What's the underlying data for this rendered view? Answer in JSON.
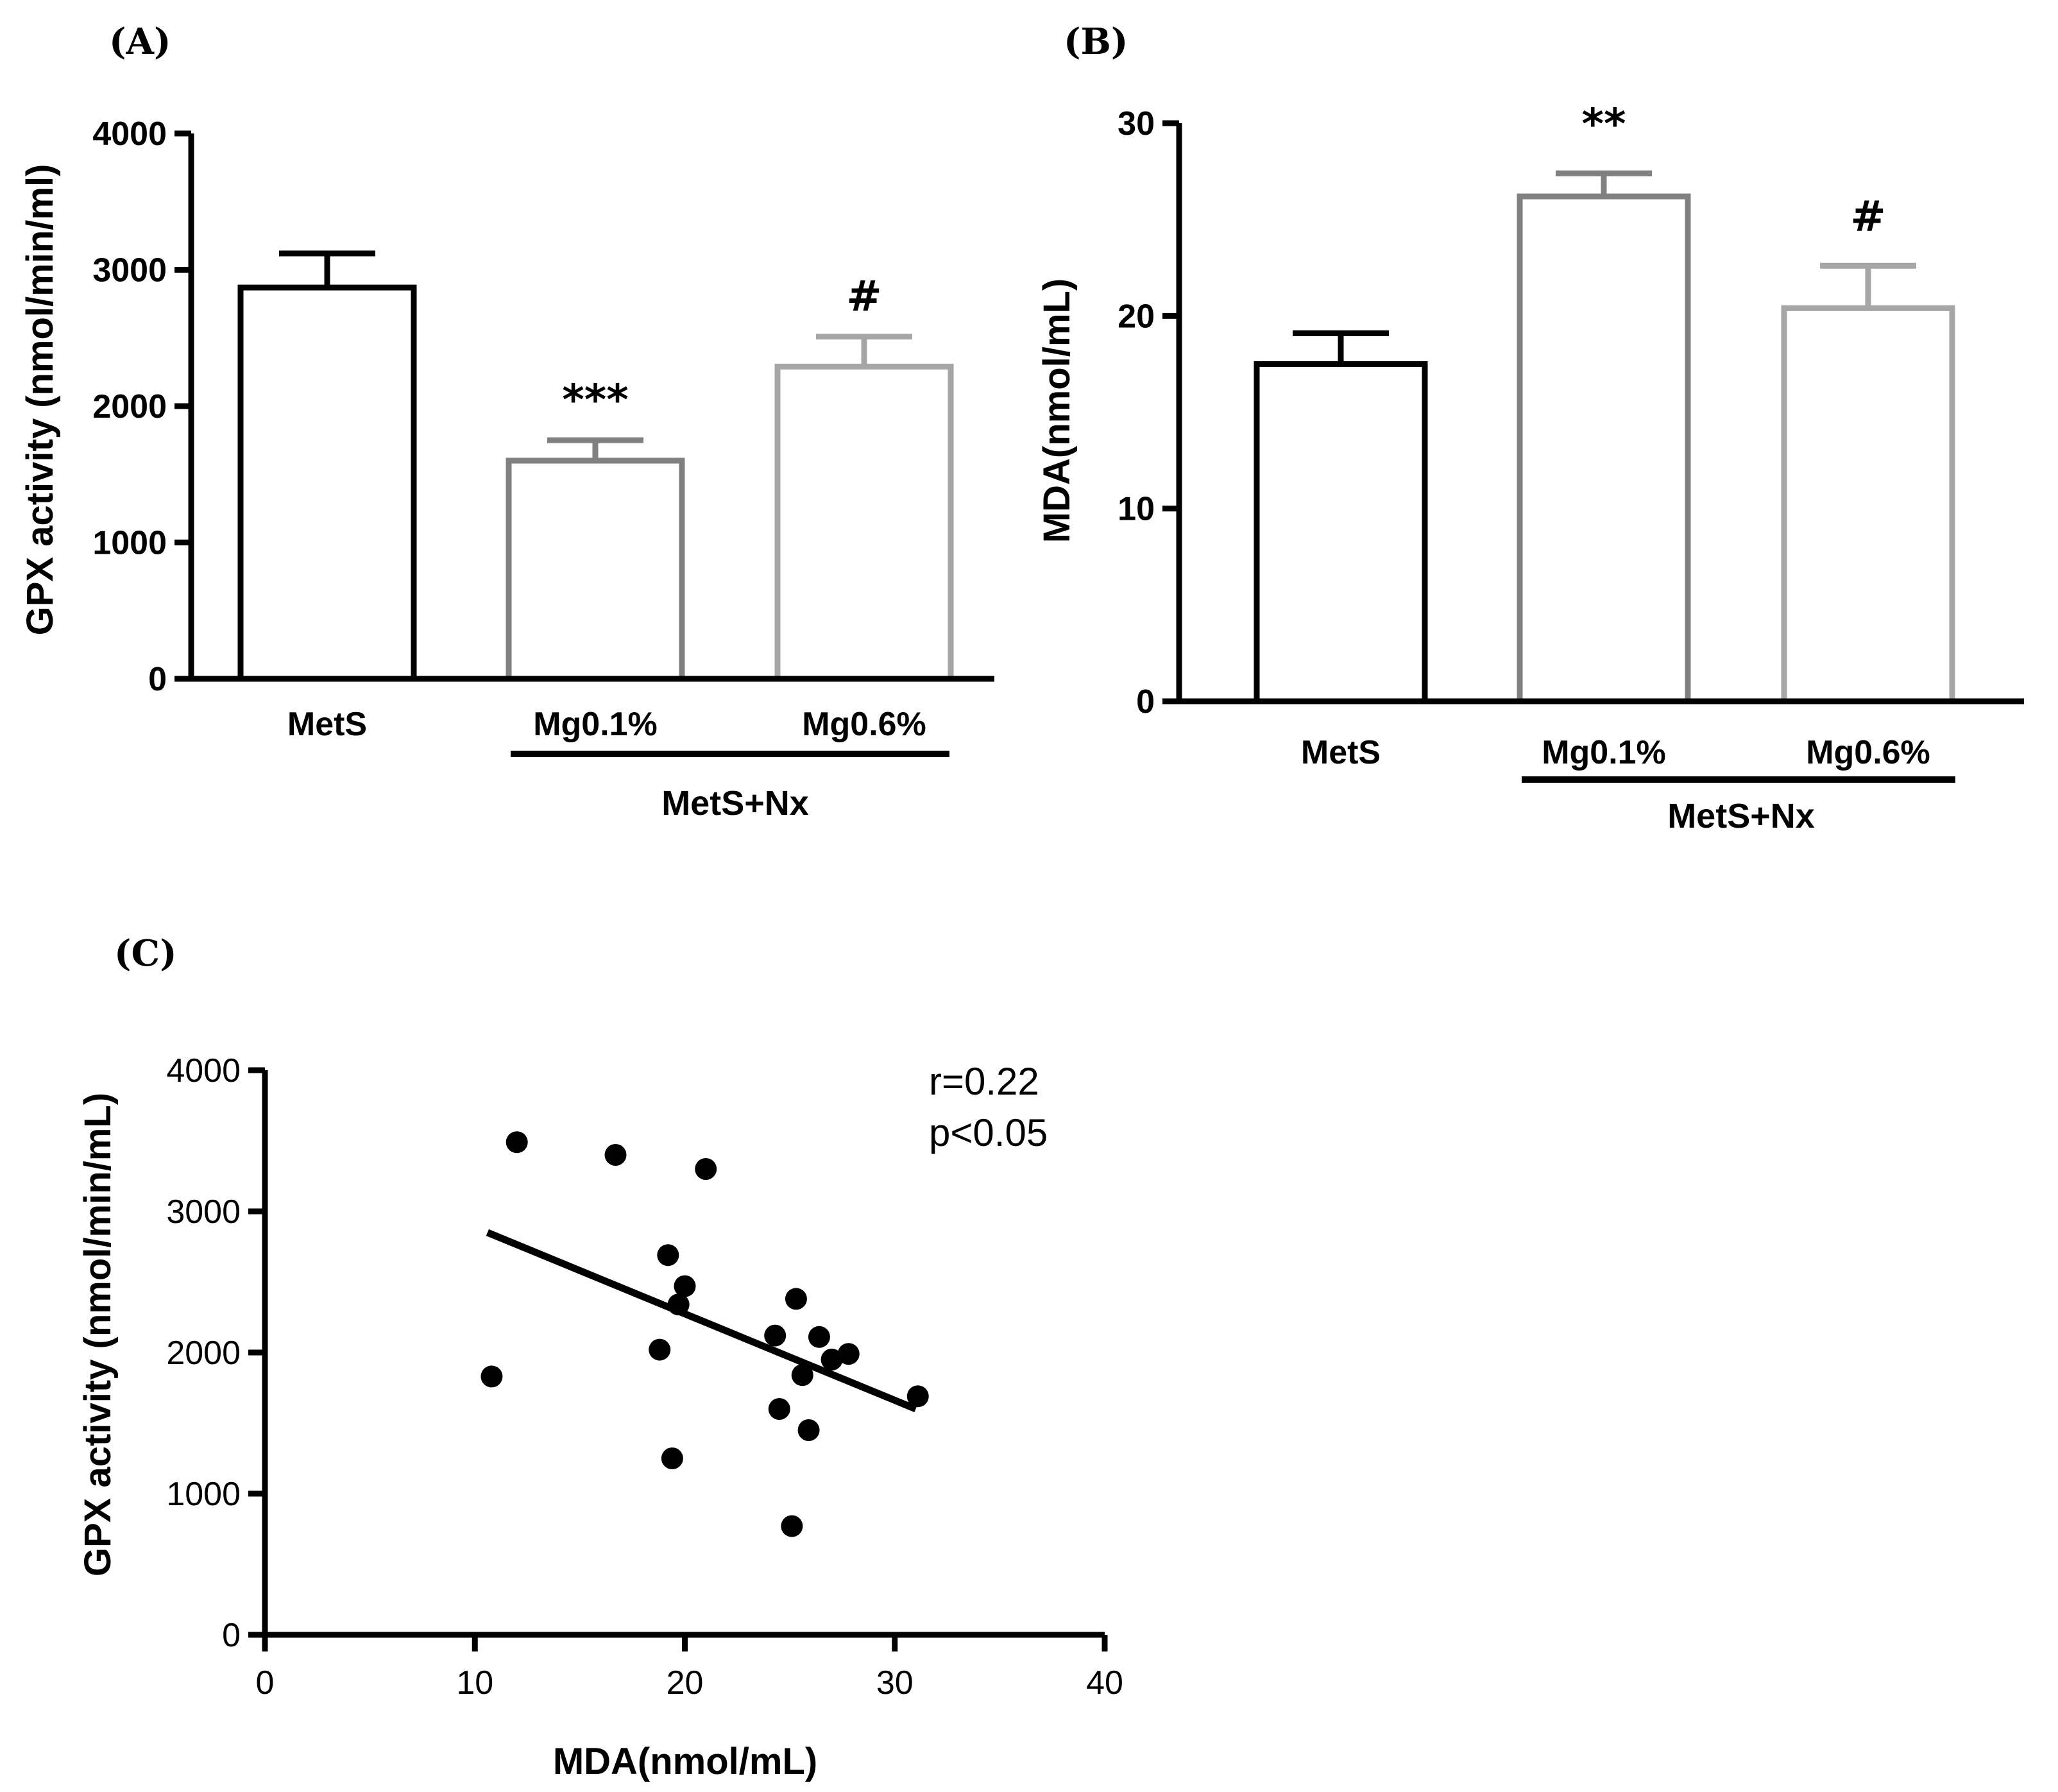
{
  "chart_data": [
    {
      "panel": "(A)",
      "type": "bar",
      "categories": [
        "MetS",
        "Mg0.1%",
        "Mg0.6%"
      ],
      "values": [
        2870,
        1600,
        2290
      ],
      "errors": [
        250,
        150,
        220
      ],
      "significance": [
        "",
        "***",
        "#"
      ],
      "bar_colors": [
        "#000000",
        "#808080",
        "#a6a6a6"
      ],
      "group_label": "MetS+Nx",
      "grouped_categories": [
        "Mg0.1%",
        "Mg0.6%"
      ],
      "title": "",
      "xlabel": "",
      "ylabel": "GPX activity (nmol/min/ml)",
      "ylim": [
        0,
        4000
      ],
      "yticks": [
        0,
        1000,
        2000,
        3000,
        4000
      ]
    },
    {
      "panel": "(B)",
      "type": "bar",
      "categories": [
        "MetS",
        "Mg0.1%",
        "Mg0.6%"
      ],
      "values": [
        17.5,
        26.2,
        20.4
      ],
      "errors": [
        1.6,
        1.2,
        2.2
      ],
      "significance": [
        "",
        "**",
        "#"
      ],
      "bar_colors": [
        "#000000",
        "#808080",
        "#a6a6a6"
      ],
      "group_label": "MetS+Nx",
      "grouped_categories": [
        "Mg0.1%",
        "Mg0.6%"
      ],
      "title": "",
      "xlabel": "",
      "ylabel": "MDA(nmol/mL)",
      "ylim": [
        0,
        30
      ],
      "yticks": [
        0,
        10,
        20,
        30
      ]
    },
    {
      "panel": "(C)",
      "type": "scatter",
      "x": [
        12.0,
        16.7,
        21.0,
        10.8,
        19.2,
        20.0,
        19.7,
        18.8,
        19.4,
        24.3,
        25.3,
        24.5,
        25.6,
        25.9,
        26.4,
        27.0,
        27.8,
        31.1,
        25.1
      ],
      "y": [
        3490,
        3400,
        3300,
        1830,
        2690,
        2470,
        2340,
        2020,
        1250,
        2120,
        2380,
        1600,
        1840,
        1450,
        2110,
        1950,
        1990,
        1690,
        770
      ],
      "fit_line": {
        "x": [
          10.6,
          31.0
        ],
        "y": [
          2850,
          1600
        ]
      },
      "annotation_r": "r=0.22",
      "annotation_p": "p<0.05",
      "title": "",
      "xlabel": "MDA(nmol/mL)",
      "ylabel": "GPX activity (nmol/min/mL)",
      "xlim": [
        0,
        40
      ],
      "ylim": [
        0,
        4000
      ],
      "xticks": [
        0,
        10,
        20,
        30,
        40
      ],
      "yticks": [
        0,
        1000,
        2000,
        3000,
        4000
      ]
    }
  ]
}
